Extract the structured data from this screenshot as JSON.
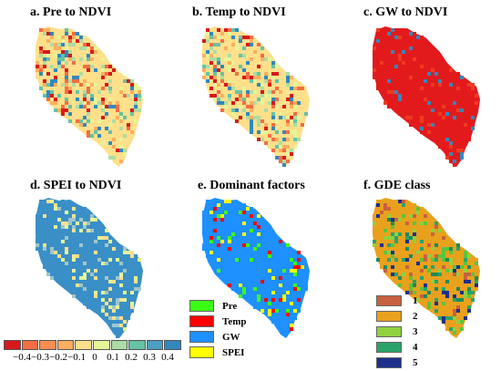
{
  "panels": [
    {
      "title": "a. Pre to NDVI",
      "palette": [
        "#d7191c",
        "#f46d43",
        "#fdae61",
        "#fee08b",
        "#e6f598",
        "#abdda4",
        "#66c2a5",
        "#3288bd"
      ],
      "base": "#fee08b"
    },
    {
      "title": "b. Temp to NDVI",
      "palette": [
        "#d7191c",
        "#f46d43",
        "#fdae61",
        "#fee08b",
        "#e6f598",
        "#abdda4",
        "#66c2a5",
        "#3288bd"
      ],
      "base": "#fee08b"
    },
    {
      "title": "c. GW to NDVI",
      "palette": [
        "#e31a1c",
        "#e31a1c",
        "#e31a1c",
        "#e31a1c",
        "#e31a1c",
        "#e31a1c",
        "#f03b20",
        "#3288bd"
      ],
      "base": "#e31a1c"
    },
    {
      "title": "d. SPEI to NDVI",
      "palette": [
        "#3a8fc7",
        "#3a8fc7",
        "#3a8fc7",
        "#3a8fc7",
        "#3a8fc7",
        "#9fc6c8",
        "#e6f598",
        "#fee08b"
      ],
      "base": "#3a8fc7"
    },
    {
      "title": "e. Dominant factors",
      "palette": [
        "#1e90ff",
        "#1e90ff",
        "#1e90ff",
        "#1e90ff",
        "#1e90ff",
        "#ffff00",
        "#ff0000",
        "#39ff14"
      ],
      "base": "#1e90ff"
    },
    {
      "title": "f. GDE class",
      "palette": [
        "#c8613f",
        "#e9a11d",
        "#e9a11d",
        "#8fd13e",
        "#5cc43c",
        "#2aa36b",
        "#1c8a5a",
        "#1d2f8c"
      ],
      "base": "#e9a11d"
    }
  ],
  "scale_legend": {
    "colors": [
      "#d7191c",
      "#f46d43",
      "#f98d52",
      "#fdae61",
      "#fee08b",
      "#e6f598",
      "#abdda4",
      "#66c2a5",
      "#4a9fc2",
      "#3288bd"
    ],
    "ticks": [
      "-0.4",
      "-0.3",
      "-0.2",
      "-0.1",
      "0",
      "0.1",
      "0.2",
      "0.3",
      "0.4"
    ]
  },
  "factor_legend": [
    {
      "label": "Pre",
      "color": "#39ff14"
    },
    {
      "label": "Temp",
      "color": "#ff0000"
    },
    {
      "label": "GW",
      "color": "#1e90ff"
    },
    {
      "label": "SPEI",
      "color": "#ffff00"
    }
  ],
  "gde_legend": [
    {
      "label": "1",
      "color": "#c8613f"
    },
    {
      "label": "2",
      "color": "#e9a11d"
    },
    {
      "label": "3",
      "color": "#8fd13e"
    },
    {
      "label": "4",
      "color": "#2aa36b"
    },
    {
      "label": "5",
      "color": "#1d2f8c"
    }
  ]
}
